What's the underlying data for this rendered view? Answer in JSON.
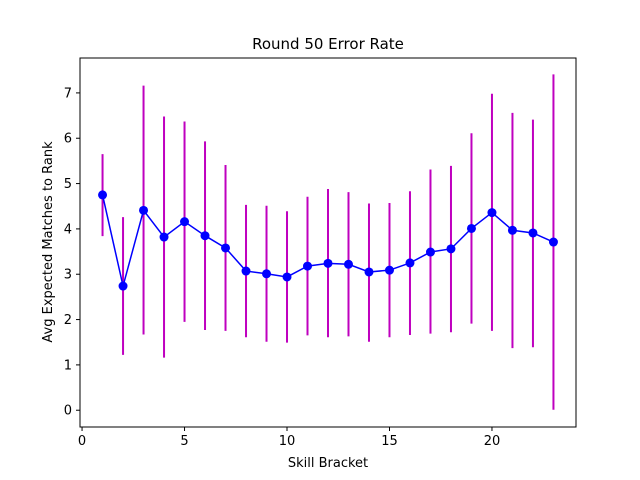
{
  "chart_data": {
    "type": "scatter",
    "title": "Round 50 Error Rate",
    "xlabel": "Skill Bracket",
    "ylabel": "Avg Expected Matches to Rank",
    "xlim": [
      -0.1,
      24.1
    ],
    "ylim": [
      -0.37,
      7.77
    ],
    "x_ticks": [
      0,
      5,
      10,
      15,
      20
    ],
    "y_ticks": [
      0,
      1,
      2,
      3,
      4,
      5,
      6,
      7
    ],
    "grid": false,
    "legend": "none",
    "series": [
      {
        "x": [
          1,
          2,
          3,
          4,
          5,
          6,
          7,
          8,
          9,
          10,
          11,
          12,
          13,
          14,
          15,
          16,
          17,
          18,
          19,
          20,
          21,
          22,
          23
        ],
        "y": [
          4.75,
          2.74,
          4.41,
          3.82,
          4.16,
          3.85,
          3.58,
          3.07,
          3.01,
          2.94,
          3.18,
          3.24,
          3.22,
          3.05,
          3.09,
          3.25,
          3.49,
          3.56,
          4.01,
          4.36,
          3.97,
          3.91,
          3.71
        ],
        "error_low": [
          3.84,
          1.22,
          1.67,
          1.16,
          1.95,
          1.77,
          1.75,
          1.61,
          1.51,
          1.49,
          1.65,
          1.61,
          1.63,
          1.51,
          1.61,
          1.66,
          1.69,
          1.72,
          1.91,
          1.75,
          1.37,
          1.39,
          0.01
        ],
        "error_high": [
          5.65,
          4.26,
          7.16,
          6.48,
          6.37,
          5.93,
          5.41,
          4.53,
          4.51,
          4.39,
          4.71,
          4.88,
          4.81,
          4.56,
          4.57,
          4.83,
          5.31,
          5.39,
          6.11,
          6.98,
          6.56,
          6.41,
          7.41
        ]
      }
    ],
    "colors": {
      "line": "#0000ff",
      "marker": "#0000ff",
      "errorbar": "#bf00bf",
      "axes": "#000000"
    }
  }
}
